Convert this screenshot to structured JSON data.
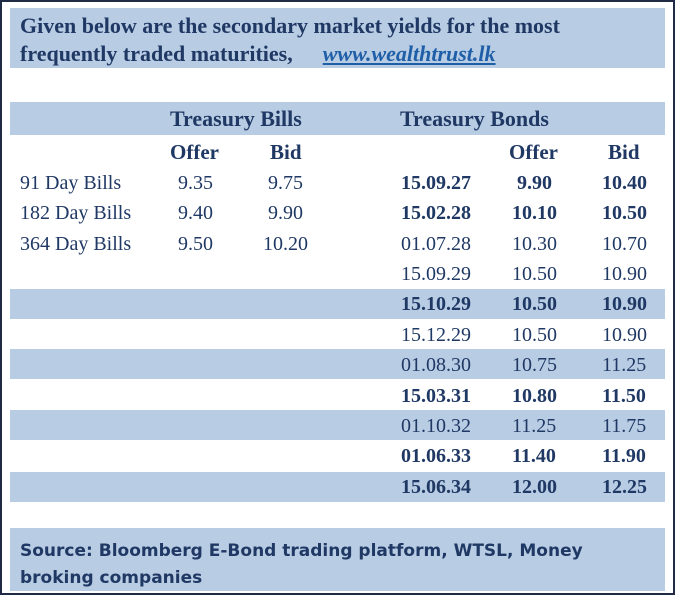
{
  "header": {
    "line1": "Given below are the secondary market yields for the most",
    "line2": "frequently traded maturities,",
    "link": "www.wealthtrust.lk"
  },
  "bills": {
    "title": "Treasury Bills",
    "col_offer": "Offer",
    "col_bid": "Bid",
    "rows": [
      {
        "label": "91 Day Bills",
        "offer": "9.35",
        "bid": "9.75"
      },
      {
        "label": "182 Day Bills",
        "offer": "9.40",
        "bid": "9.90"
      },
      {
        "label": "364 Day Bills",
        "offer": "9.50",
        "bid": "10.20"
      }
    ]
  },
  "bonds": {
    "title": "Treasury Bonds",
    "col_offer": "Offer",
    "col_bid": "Bid",
    "rows": [
      {
        "maturity": "15.09.27",
        "offer": "9.90",
        "bid": "10.40",
        "bold": true
      },
      {
        "maturity": "15.02.28",
        "offer": "10.10",
        "bid": "10.50",
        "bold": true
      },
      {
        "maturity": "01.07.28",
        "offer": "10.30",
        "bid": "10.70",
        "bold": false
      },
      {
        "maturity": "15.09.29",
        "offer": "10.50",
        "bid": "10.90",
        "bold": false
      },
      {
        "maturity": "15.10.29",
        "offer": "10.50",
        "bid": "10.90",
        "bold": true
      },
      {
        "maturity": "15.12.29",
        "offer": "10.50",
        "bid": "10.90",
        "bold": false
      },
      {
        "maturity": "01.08.30",
        "offer": "10.75",
        "bid": "11.25",
        "bold": false
      },
      {
        "maturity": "15.03.31",
        "offer": "10.80",
        "bid": "11.50",
        "bold": true
      },
      {
        "maturity": "01.10.32",
        "offer": "11.25",
        "bid": "11.75",
        "bold": false
      },
      {
        "maturity": "01.06.33",
        "offer": "11.40",
        "bid": "11.90",
        "bold": true
      },
      {
        "maturity": "15.06.34",
        "offer": "12.00",
        "bid": "12.25",
        "bold": true
      }
    ]
  },
  "footer": {
    "source": "Source: Bloomberg E-Bond trading platform, WTSL, Money broking companies"
  },
  "colors": {
    "band": "#b8cce4",
    "text": "#1f3864",
    "link": "#1f5fa8"
  }
}
